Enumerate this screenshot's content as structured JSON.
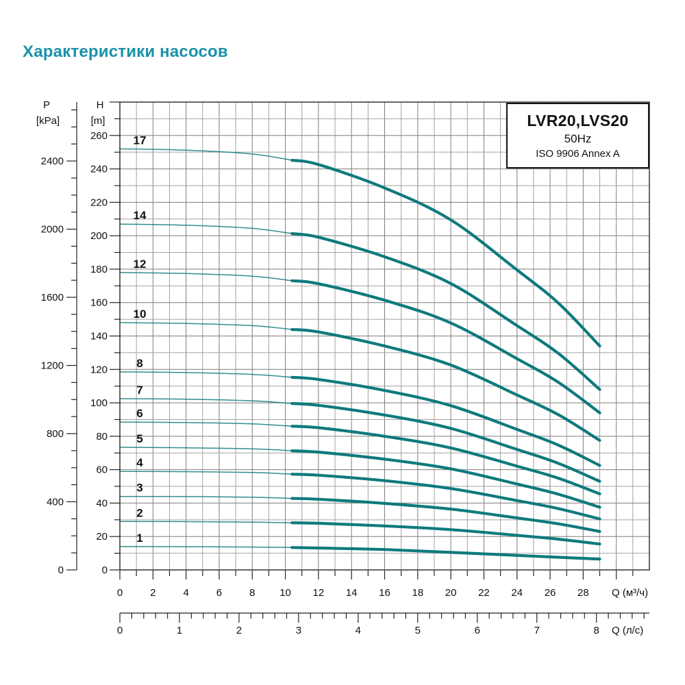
{
  "page": {
    "title": "Характеристики насосов",
    "title_color": "#1992a9",
    "background": "#ffffff"
  },
  "info_box": {
    "model": "LVR20,LVS20",
    "frequency": "50Hz",
    "standard": "ISO 9906 Annex A"
  },
  "axes": {
    "pressure": {
      "name": "P",
      "unit": "[kPa]",
      "tick_labels": [
        0,
        400,
        800,
        1200,
        1600,
        2000,
        2400
      ],
      "minor_step": 100,
      "max": 2700,
      "kpa_to_m": 0.10197
    },
    "head": {
      "name": "H",
      "unit": "[m]",
      "tick_labels": [
        0,
        20,
        40,
        60,
        80,
        100,
        120,
        140,
        160,
        180,
        200,
        220,
        240,
        260
      ],
      "minor_step": 10,
      "max": 280
    },
    "flow_m3h": {
      "label": "Q (м³/ч)",
      "tick_labels": [
        0,
        2,
        4,
        6,
        8,
        10,
        12,
        14,
        16,
        18,
        20,
        22,
        24,
        26,
        28
      ],
      "minor_step": 1,
      "max": 31
    },
    "flow_ls": {
      "label": "Q (л/с)",
      "tick_labels": [
        0,
        1,
        2,
        3,
        4,
        5,
        6,
        7,
        8
      ],
      "minor_step": 0.2,
      "max": 8.8
    }
  },
  "chart_data": {
    "type": "line",
    "title": "LVR20,LVS20 50Hz ISO 9906 Annex A",
    "xlabel": "Q (м³/ч)",
    "x2label": "Q (л/с)",
    "ylabel": "H [m]",
    "y2label": "P [kPa]",
    "xlim": [
      0,
      32
    ],
    "ylim": [
      0,
      280
    ],
    "grid": true,
    "curve_color": "#0e7a7d",
    "thick_from_q": 10.4,
    "x": [
      0,
      4,
      8,
      10.4,
      12,
      16,
      20,
      24,
      26.5,
      29
    ],
    "series": [
      {
        "name": "17",
        "values": [
          252,
          251.2,
          248.9,
          245.2,
          242.6,
          228.6,
          209.5,
          179.5,
          159.7,
          134
        ]
      },
      {
        "name": "14",
        "values": [
          207,
          206.3,
          204.4,
          201.3,
          199.1,
          187.4,
          171.4,
          146.2,
          129.6,
          108
        ]
      },
      {
        "name": "12",
        "values": [
          178,
          177.4,
          175.8,
          173.1,
          171.3,
          161.4,
          147.8,
          126.4,
          112.3,
          94
        ]
      },
      {
        "name": "10",
        "values": [
          148,
          147.5,
          146.2,
          143.9,
          142.4,
          134.0,
          122.6,
          104.7,
          92.9,
          77.5
        ]
      },
      {
        "name": "8",
        "values": [
          118.5,
          118.1,
          117.0,
          115.3,
          114.0,
          107.4,
          98.3,
          84.1,
          74.7,
          62.5
        ]
      },
      {
        "name": "7",
        "values": [
          102.5,
          102.2,
          101.2,
          99.6,
          98.5,
          92.7,
          84.7,
          72.1,
          63.8,
          53
        ]
      },
      {
        "name": "6",
        "values": [
          88.5,
          88.2,
          87.4,
          86.0,
          85.1,
          80.0,
          73.0,
          62.1,
          54.9,
          45.5
        ]
      },
      {
        "name": "5",
        "values": [
          73.4,
          73.1,
          72.5,
          71.3,
          70.5,
          66.3,
          60.5,
          51.4,
          45.3,
          37.5
        ]
      },
      {
        "name": "4",
        "values": [
          59,
          58.8,
          58.3,
          57.3,
          56.7,
          53.4,
          48.7,
          41.5,
          36.7,
          30.5
        ]
      },
      {
        "name": "3",
        "values": [
          44,
          43.9,
          43.5,
          42.8,
          42.3,
          39.8,
          36.4,
          31.1,
          27.6,
          23
        ]
      },
      {
        "name": "2",
        "values": [
          29,
          28.9,
          28.6,
          28.2,
          27.9,
          26.3,
          24.1,
          20.7,
          18.4,
          15.5
        ]
      },
      {
        "name": "1",
        "values": [
          14,
          13.9,
          13.7,
          13.4,
          13.1,
          12.2,
          10.5,
          8.7,
          7.6,
          6.5
        ]
      }
    ]
  }
}
